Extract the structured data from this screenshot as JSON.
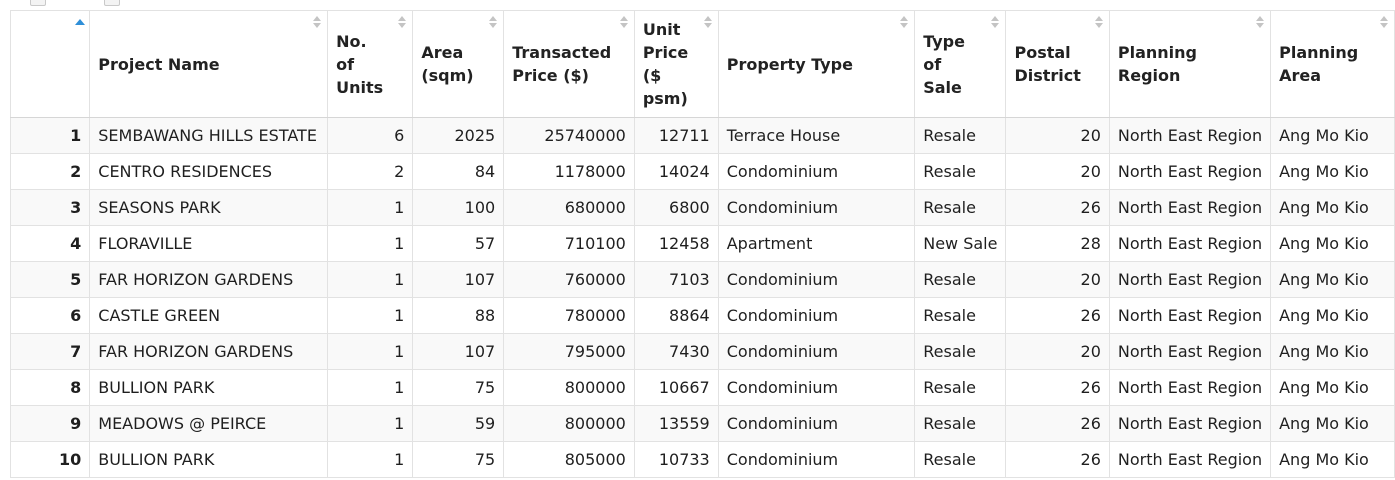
{
  "table": {
    "columns": [
      {
        "key": "row",
        "label": ""
      },
      {
        "key": "project_name",
        "label": "Project Name"
      },
      {
        "key": "units",
        "label": "No. of Units"
      },
      {
        "key": "area",
        "label": "Area (sqm)"
      },
      {
        "key": "price",
        "label": "Transacted Price ($)"
      },
      {
        "key": "unit_price",
        "label": "Unit Price ($ psm)"
      },
      {
        "key": "property_type",
        "label": "Property Type"
      },
      {
        "key": "sale_type",
        "label": "Type of Sale"
      },
      {
        "key": "postal_district",
        "label": "Postal District"
      },
      {
        "key": "planning_region",
        "label": "Planning Region"
      },
      {
        "key": "planning_area",
        "label": "Planning Area"
      }
    ],
    "rows": [
      [
        "1",
        "SEMBAWANG HILLS ESTATE",
        "6",
        "2025",
        "25740000",
        "12711",
        "Terrace House",
        "Resale",
        "20",
        "North East Region",
        "Ang Mo Kio"
      ],
      [
        "2",
        "CENTRO RESIDENCES",
        "2",
        "84",
        "1178000",
        "14024",
        "Condominium",
        "Resale",
        "20",
        "North East Region",
        "Ang Mo Kio"
      ],
      [
        "3",
        "SEASONS PARK",
        "1",
        "100",
        "680000",
        "6800",
        "Condominium",
        "Resale",
        "26",
        "North East Region",
        "Ang Mo Kio"
      ],
      [
        "4",
        "FLORAVILLE",
        "1",
        "57",
        "710100",
        "12458",
        "Apartment",
        "New Sale",
        "28",
        "North East Region",
        "Ang Mo Kio"
      ],
      [
        "5",
        "FAR HORIZON GARDENS",
        "1",
        "107",
        "760000",
        "7103",
        "Condominium",
        "Resale",
        "20",
        "North East Region",
        "Ang Mo Kio"
      ],
      [
        "6",
        "CASTLE GREEN",
        "1",
        "88",
        "780000",
        "8864",
        "Condominium",
        "Resale",
        "26",
        "North East Region",
        "Ang Mo Kio"
      ],
      [
        "7",
        "FAR HORIZON GARDENS",
        "1",
        "107",
        "795000",
        "7430",
        "Condominium",
        "Resale",
        "20",
        "North East Region",
        "Ang Mo Kio"
      ],
      [
        "8",
        "BULLION PARK",
        "1",
        "75",
        "800000",
        "10667",
        "Condominium",
        "Resale",
        "26",
        "North East Region",
        "Ang Mo Kio"
      ],
      [
        "9",
        "MEADOWS @ PEIRCE",
        "1",
        "59",
        "800000",
        "13559",
        "Condominium",
        "Resale",
        "26",
        "North East Region",
        "Ang Mo Kio"
      ],
      [
        "10",
        "BULLION PARK",
        "1",
        "75",
        "805000",
        "10733",
        "Condominium",
        "Resale",
        "26",
        "North East Region",
        "Ang Mo Kio"
      ]
    ]
  }
}
